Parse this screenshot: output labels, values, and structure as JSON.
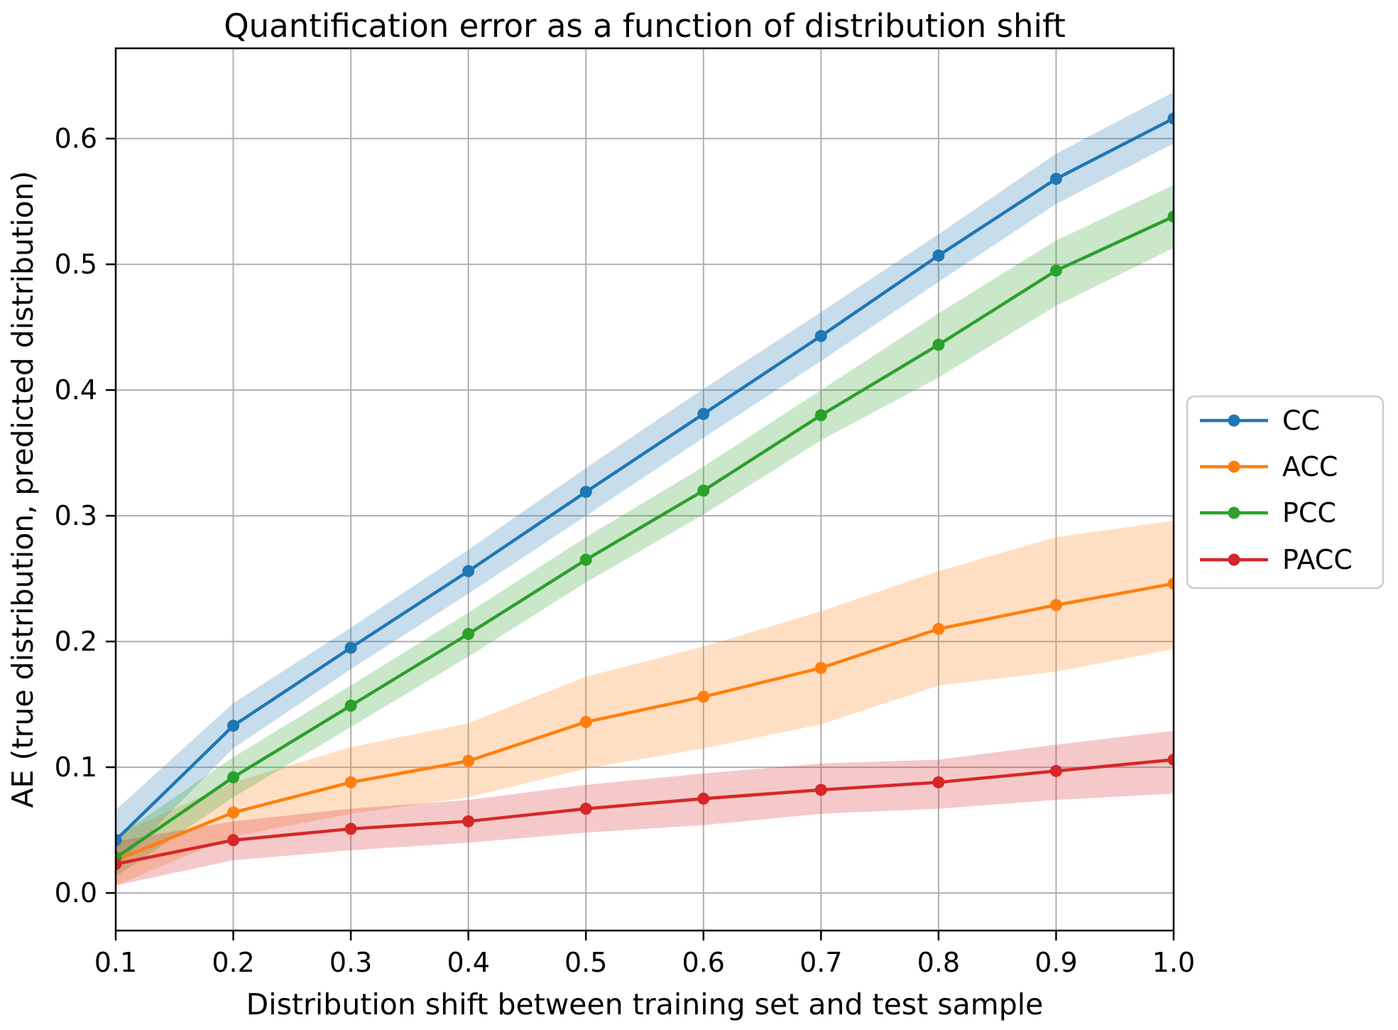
{
  "title": "Quantification error as a function of distribution shift",
  "xlabel": "Distribution shift between training set and test sample",
  "ylabel": "AE (true distribution, predicted distribution)",
  "chart_data": {
    "type": "line",
    "x": [
      0.1,
      0.2,
      0.3,
      0.4,
      0.5,
      0.6,
      0.7,
      0.8,
      0.9,
      1.0
    ],
    "series": [
      {
        "name": "CC",
        "color": "#1f77b4",
        "values": [
          0.042,
          0.133,
          0.195,
          0.256,
          0.319,
          0.381,
          0.443,
          0.507,
          0.568,
          0.616
        ],
        "band_lo": [
          0.02,
          0.115,
          0.178,
          0.238,
          0.3,
          0.362,
          0.423,
          0.486,
          0.548,
          0.596
        ],
        "band_hi": [
          0.066,
          0.151,
          0.211,
          0.273,
          0.338,
          0.401,
          0.462,
          0.524,
          0.588,
          0.637
        ]
      },
      {
        "name": "ACC",
        "color": "#ff7f0e",
        "values": [
          0.026,
          0.064,
          0.088,
          0.105,
          0.136,
          0.156,
          0.179,
          0.21,
          0.229,
          0.246
        ],
        "band_lo": [
          0.006,
          0.045,
          0.063,
          0.076,
          0.099,
          0.115,
          0.134,
          0.165,
          0.176,
          0.194
        ],
        "band_hi": [
          0.046,
          0.088,
          0.116,
          0.135,
          0.172,
          0.196,
          0.224,
          0.256,
          0.283,
          0.296
        ]
      },
      {
        "name": "PCC",
        "color": "#2ca02c",
        "values": [
          0.028,
          0.092,
          0.149,
          0.206,
          0.265,
          0.32,
          0.38,
          0.436,
          0.495,
          0.538
        ],
        "band_lo": [
          0.013,
          0.076,
          0.132,
          0.188,
          0.247,
          0.301,
          0.36,
          0.41,
          0.467,
          0.513
        ],
        "band_hi": [
          0.044,
          0.108,
          0.165,
          0.223,
          0.283,
          0.339,
          0.4,
          0.461,
          0.519,
          0.563
        ]
      },
      {
        "name": "PACC",
        "color": "#d62728",
        "values": [
          0.023,
          0.042,
          0.051,
          0.057,
          0.067,
          0.075,
          0.082,
          0.088,
          0.097,
          0.106
        ],
        "band_lo": [
          0.006,
          0.026,
          0.034,
          0.04,
          0.048,
          0.054,
          0.063,
          0.067,
          0.074,
          0.079
        ],
        "band_hi": [
          0.041,
          0.057,
          0.067,
          0.074,
          0.086,
          0.095,
          0.103,
          0.106,
          0.118,
          0.129
        ]
      }
    ],
    "x_ticks": [
      "0.1",
      "0.2",
      "0.3",
      "0.4",
      "0.5",
      "0.6",
      "0.7",
      "0.8",
      "0.9",
      "1.0"
    ],
    "y_ticks": [
      "0.0",
      "0.1",
      "0.2",
      "0.3",
      "0.4",
      "0.5",
      "0.6"
    ],
    "xlim": [
      0.1,
      1.0
    ],
    "ylim": [
      -0.0299,
      0.6718
    ],
    "grid": true,
    "legend_position": "right-outside",
    "band_alpha": 0.25,
    "grid_color": "#b0b0b0",
    "spine_color": "#000000",
    "legend_border_color": "#cccccc"
  },
  "legend": {
    "entries": [
      "CC",
      "ACC",
      "PCC",
      "PACC"
    ]
  }
}
